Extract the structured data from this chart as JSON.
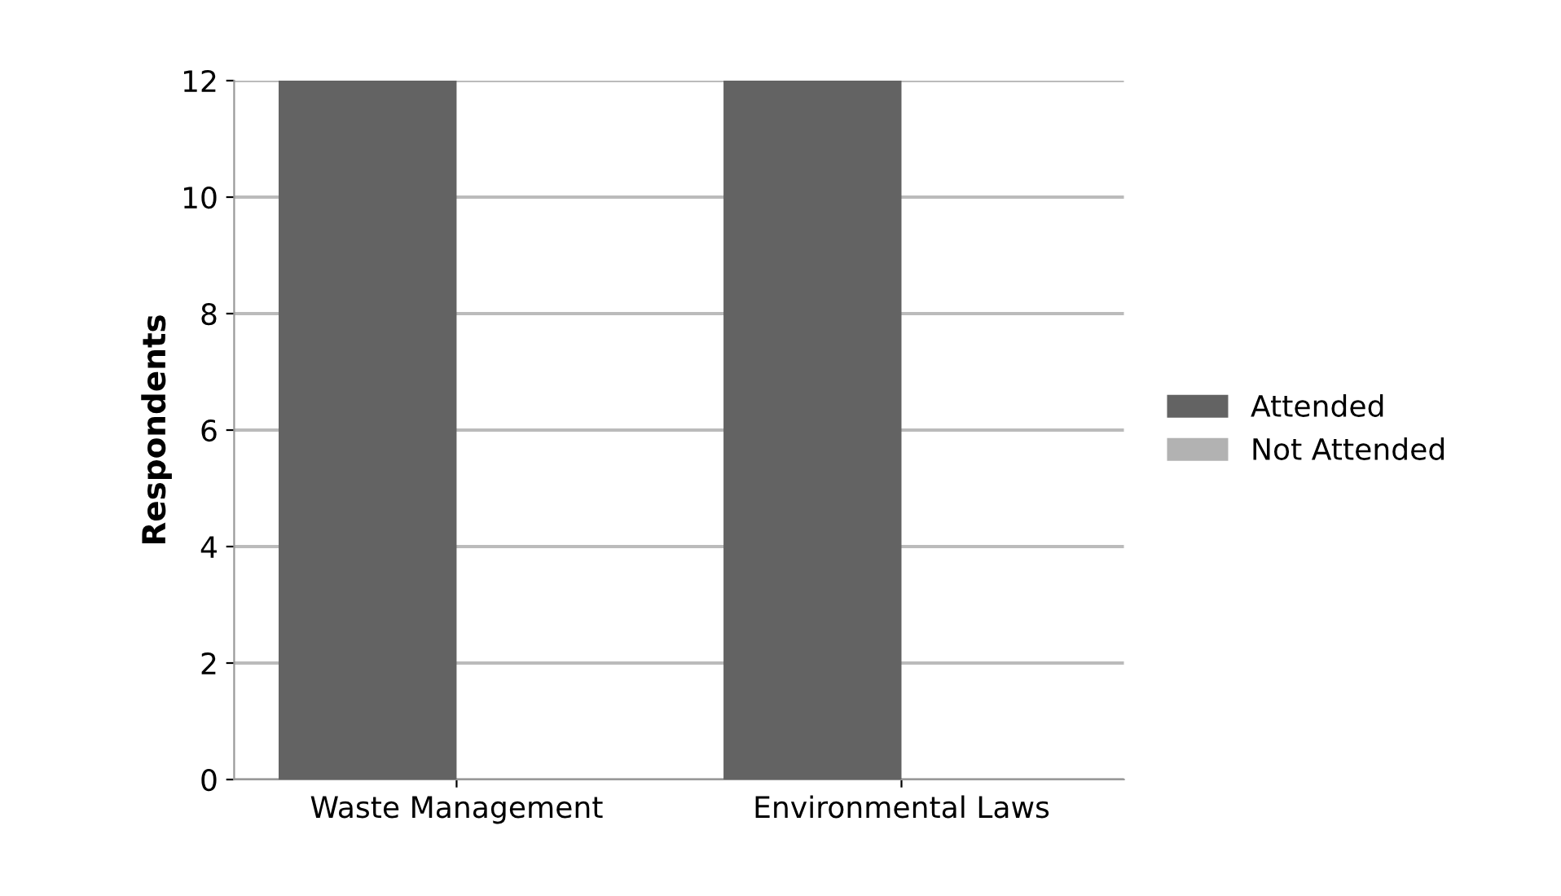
{
  "chart_data": {
    "type": "bar",
    "ylabel": "Respondents",
    "categories": [
      "Waste Management",
      "Environmental Laws"
    ],
    "series": [
      {
        "name": "Attended",
        "color": "#636363",
        "values": [
          12,
          12
        ]
      },
      {
        "name": "Not Attended",
        "color": "#b2b2b2",
        "values": [
          0,
          0
        ]
      }
    ],
    "ylim": [
      0,
      12
    ],
    "yticks": [
      0,
      2,
      4,
      6,
      8,
      10,
      12
    ],
    "grid": "y",
    "legend": "right"
  }
}
